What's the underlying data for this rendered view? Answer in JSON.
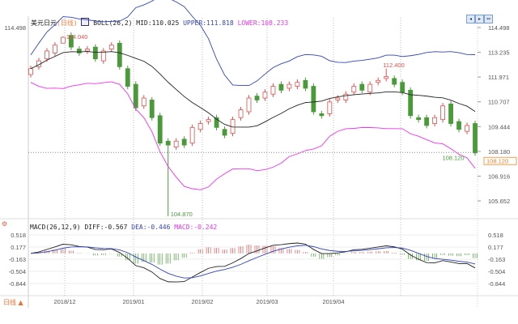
{
  "header": {
    "symbol": "美元日元",
    "period": "(日线)",
    "boll": "BOLL(26,2)",
    "mid": "MID:110.025",
    "upper": "UPPER:111.818",
    "lower": "LOWER:108.233"
  },
  "macd_header": {
    "label": "MACD(26,12,9)",
    "diff": "DIFF:-0.567",
    "dea": "DEA:-0.446",
    "macd": "MACD:-0.242"
  },
  "footer": {
    "period_label": "日线 ▲"
  },
  "colors": {
    "up": "#e05050",
    "down": "#4a9a3a",
    "mid": "#222222",
    "upper": "#3344bb",
    "lower": "#ee33ee"
  },
  "chart_data": [
    {
      "type": "candlestick",
      "title": "美元日元 (日线) BOLL(26,2)",
      "yticks": [
        114.498,
        113.235,
        111.971,
        110.707,
        109.444,
        108.18,
        106.916,
        105.652
      ],
      "ylim": [
        105.652,
        114.498
      ],
      "xticks": [
        "2018/12",
        "2019/01",
        "2019/02",
        "2019/03",
        "2019/04"
      ],
      "annotations": {
        "high": "114.040",
        "low": "104.870",
        "peak": "112.400",
        "last": "108.120",
        "last_tag": "108.120"
      },
      "closes": [
        112.4,
        112.8,
        113.3,
        113.6,
        114.0,
        113.5,
        113.2,
        113.4,
        112.9,
        113.3,
        113.6,
        112.5,
        111.5,
        110.4,
        110.9,
        109.9,
        108.6,
        108.5,
        108.7,
        108.5,
        109.4,
        109.6,
        109.8,
        109.4,
        109.0,
        109.8,
        110.3,
        110.9,
        110.8,
        111.2,
        111.5,
        111.3,
        111.6,
        111.7,
        111.4,
        110.2,
        110.0,
        110.7,
        110.9,
        111.1,
        111.5,
        111.3,
        111.6,
        111.8,
        112.0,
        111.6,
        111.2,
        110.0,
        109.8,
        109.5,
        109.9,
        110.5,
        109.6,
        109.3,
        109.5,
        108.1
      ],
      "lows_override": {
        "17": 104.87,
        "4": 113.9
      },
      "highs_override": {
        "4": 114.04,
        "44": 112.4
      },
      "series_names": [
        "MID",
        "UPPER",
        "LOWER"
      ]
    },
    {
      "type": "macd",
      "yticks": [
        0.518,
        0.177,
        -0.163,
        -0.504,
        -0.844
      ],
      "ylim": [
        -0.844,
        0.518
      ],
      "series_names": [
        "DIFF",
        "DEA",
        "MACD"
      ]
    }
  ]
}
